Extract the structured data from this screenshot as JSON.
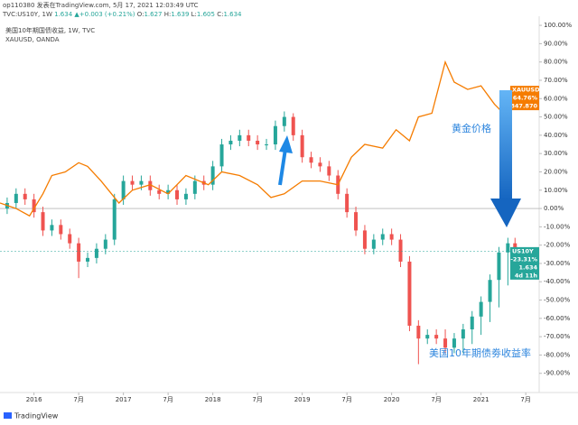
{
  "header": {
    "published": "op110380 发表在TradingView.com, 5月 17, 2021 12:03:49 UTC",
    "symbol_line": [
      "TVC:US10Y, 1W",
      "1.634",
      "▲+0.003 (+0.21%)",
      "O:",
      "1.627",
      "H:",
      "1.639",
      "L:",
      "1.605",
      "C:",
      "1.634"
    ]
  },
  "footer": {
    "brand": "TradingView"
  },
  "chart_data": {
    "type": "candlestick",
    "title": "美国10年期国债收益, 1W, TVC",
    "subtitle": "XAUUSD, OANDA",
    "annotations": [
      "黄金价格",
      "美国10年期债劵收益率"
    ],
    "xlim": [
      2015.62,
      2021.65
    ],
    "xticks": [
      2016,
      {
        "value": 2016.5,
        "label": "7月"
      },
      2017,
      {
        "value": 2017.5,
        "label": "7月"
      },
      2018,
      {
        "value": 2018.5,
        "label": "7月"
      },
      2019,
      {
        "value": 2019.5,
        "label": "7月"
      },
      2020,
      {
        "value": 2020.5,
        "label": "7月"
      },
      2021,
      {
        "value": 2021.5,
        "label": "7月"
      }
    ],
    "ylim": [
      -99,
      103
    ],
    "yticks": [
      {
        "value": 100,
        "label": "100.00%"
      },
      {
        "value": 90,
        "label": "90.00%"
      },
      {
        "value": 80,
        "label": "80.00%"
      },
      {
        "value": 70,
        "label": "70.00%"
      },
      {
        "value": 60,
        "label": "60.00%"
      },
      {
        "value": 50,
        "label": "50.00%"
      },
      {
        "value": 40,
        "label": "40.00%"
      },
      {
        "value": 30,
        "label": "30.00%"
      },
      {
        "value": 20,
        "label": "20.00%"
      },
      {
        "value": 10,
        "label": "10.00%"
      },
      {
        "value": 0,
        "label": "0.00%"
      },
      {
        "value": -10,
        "label": "-10.00%"
      },
      {
        "value": -20,
        "label": "-20.00%"
      },
      {
        "value": -30,
        "label": "-30.00%"
      },
      {
        "value": -40,
        "label": "-40.00%"
      },
      {
        "value": -50,
        "label": "-50.00%"
      },
      {
        "value": -60,
        "label": "-60.00%"
      },
      {
        "value": -70,
        "label": "-70.00%"
      },
      {
        "value": -80,
        "label": "-80.00%"
      },
      {
        "value": -90,
        "label": "-90.00%"
      }
    ],
    "zero_line": true,
    "grid": false,
    "series": [
      {
        "name": "US10Y",
        "type": "candlestick",
        "up_color": "#26a69a",
        "down_color": "#ef5350",
        "badge_color": "#26a69a",
        "x": [
          2015.7,
          2015.8,
          2015.9,
          2016.0,
          2016.1,
          2016.2,
          2016.3,
          2016.4,
          2016.5,
          2016.6,
          2016.7,
          2016.8,
          2016.9,
          2017.0,
          2017.1,
          2017.2,
          2017.3,
          2017.4,
          2017.5,
          2017.6,
          2017.7,
          2017.8,
          2017.9,
          2018.0,
          2018.1,
          2018.2,
          2018.3,
          2018.4,
          2018.5,
          2018.6,
          2018.7,
          2018.8,
          2018.9,
          2019.0,
          2019.1,
          2019.2,
          2019.3,
          2019.4,
          2019.5,
          2019.6,
          2019.7,
          2019.8,
          2019.9,
          2020.0,
          2020.1,
          2020.2,
          2020.3,
          2020.4,
          2020.5,
          2020.6,
          2020.7,
          2020.8,
          2020.9,
          2021.0,
          2021.1,
          2021.2,
          2021.3,
          2021.38
        ],
        "open": [
          0,
          3,
          8,
          5,
          -2,
          -12,
          -9,
          -14,
          -19,
          -29,
          -27,
          -22,
          -17,
          5,
          15,
          13,
          15,
          10,
          8,
          10,
          5,
          8,
          15,
          13,
          23,
          35,
          37,
          40,
          37,
          35,
          35,
          45,
          50,
          40,
          28,
          25,
          23,
          18,
          8,
          -2,
          -12,
          -22,
          -17,
          -14,
          -17,
          -29,
          -64,
          -71,
          -69,
          -71,
          -76,
          -71,
          -66,
          -59,
          -51,
          -39,
          -24,
          -19
        ],
        "high": [
          6,
          11,
          11,
          8,
          1,
          -6,
          -6,
          -11,
          -16,
          -24,
          -19,
          -14,
          8,
          18,
          18,
          18,
          18,
          13,
          13,
          13,
          11,
          18,
          18,
          26,
          38,
          40,
          43,
          43,
          40,
          38,
          48,
          53,
          52,
          43,
          31,
          28,
          26,
          21,
          11,
          1,
          -9,
          -14,
          -11,
          -11,
          -14,
          -26,
          -61,
          -66,
          -66,
          -66,
          -68,
          -63,
          -56,
          -48,
          -36,
          -21,
          -16,
          -16
        ],
        "low": [
          -3,
          0,
          2,
          -5,
          -15,
          -15,
          -17,
          -22,
          -38,
          -32,
          -30,
          -25,
          -20,
          2,
          10,
          10,
          7,
          5,
          5,
          2,
          2,
          5,
          10,
          10,
          20,
          32,
          34,
          34,
          32,
          32,
          32,
          42,
          37,
          25,
          22,
          20,
          15,
          5,
          -5,
          -15,
          -25,
          -25,
          -20,
          -20,
          -32,
          -67,
          -85,
          -74,
          -74,
          -79,
          -79,
          -79,
          -74,
          -69,
          -62,
          -54,
          -42,
          -27
        ],
        "close": [
          3,
          8,
          5,
          -2,
          -12,
          -9,
          -14,
          -19,
          -29,
          -27,
          -22,
          -17,
          5,
          15,
          13,
          15,
          10,
          8,
          10,
          5,
          8,
          15,
          13,
          23,
          35,
          37,
          40,
          37,
          35,
          35,
          45,
          50,
          40,
          28,
          25,
          23,
          18,
          8,
          -2,
          -12,
          -22,
          -17,
          -14,
          -17,
          -29,
          -64,
          -71,
          -69,
          -71,
          -76,
          -71,
          -66,
          -59,
          -51,
          -39,
          -24,
          -19,
          -23.31
        ],
        "badge_lines": [
          "-23.31%",
          "1.634",
          "4d 11h"
        ]
      },
      {
        "name": "XAUUSD",
        "type": "line",
        "color": "#f57c00",
        "badge_color": "#f57c00",
        "x": [
          2015.62,
          2015.8,
          2015.95,
          2016.1,
          2016.2,
          2016.35,
          2016.5,
          2016.6,
          2016.75,
          2016.95,
          2017.1,
          2017.3,
          2017.5,
          2017.7,
          2017.95,
          2018.1,
          2018.3,
          2018.5,
          2018.65,
          2018.8,
          2019.0,
          2019.2,
          2019.4,
          2019.55,
          2019.7,
          2019.9,
          2020.05,
          2020.2,
          2020.3,
          2020.45,
          2020.6,
          2020.7,
          2020.85,
          2021.0,
          2021.15,
          2021.25,
          2021.35,
          2021.38
        ],
        "values": [
          3,
          0,
          -4,
          8,
          18,
          20,
          25,
          23,
          15,
          3,
          10,
          13,
          8,
          18,
          13,
          20,
          18,
          13,
          6,
          8,
          15,
          15,
          13,
          28,
          35,
          33,
          43,
          37,
          50,
          52,
          80,
          69,
          65,
          67,
          57,
          52,
          60,
          64.76
        ],
        "badge_lines": [
          "64.76%",
          "1847.870"
        ]
      }
    ]
  }
}
